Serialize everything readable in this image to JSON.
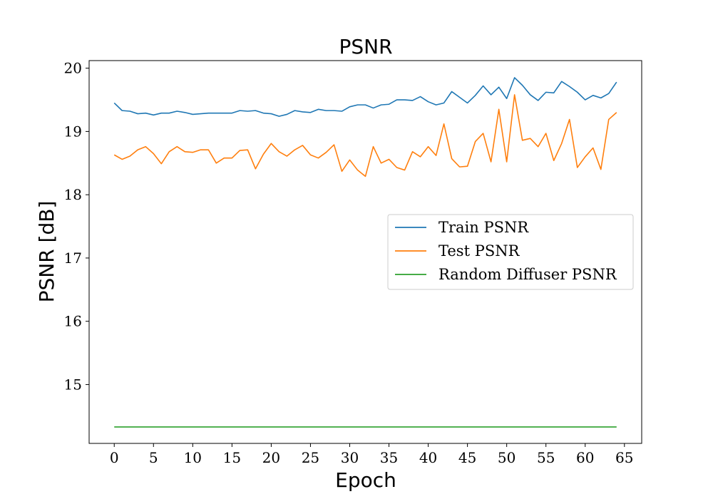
{
  "chart_data": {
    "type": "line",
    "title": "PSNR",
    "xlabel": "Epoch",
    "ylabel": "PSNR [dB]",
    "xlim": [
      -3.2,
      67.2
    ],
    "ylim": [
      14.07,
      20.12
    ],
    "xticks": [
      0,
      5,
      10,
      15,
      20,
      25,
      30,
      35,
      40,
      45,
      50,
      55,
      60,
      65
    ],
    "yticks": [
      15,
      16,
      17,
      18,
      19,
      20
    ],
    "grid": false,
    "legend_position": "center-right",
    "series": [
      {
        "name": "Train PSNR",
        "color": "#1f77b4",
        "x": [
          0,
          1,
          2,
          3,
          4,
          5,
          6,
          7,
          8,
          9,
          10,
          11,
          12,
          13,
          14,
          15,
          16,
          17,
          18,
          19,
          20,
          21,
          22,
          23,
          24,
          25,
          26,
          27,
          28,
          29,
          30,
          31,
          32,
          33,
          34,
          35,
          36,
          37,
          38,
          39,
          40,
          41,
          42,
          43,
          44,
          45,
          46,
          47,
          48,
          49,
          50,
          51,
          52,
          53,
          54,
          55,
          56,
          57,
          58,
          59,
          60,
          61,
          62,
          63,
          64
        ],
        "values": [
          19.45,
          19.33,
          19.32,
          19.28,
          19.29,
          19.26,
          19.29,
          19.29,
          19.32,
          19.3,
          19.27,
          19.28,
          19.29,
          19.29,
          19.29,
          19.29,
          19.33,
          19.32,
          19.33,
          19.29,
          19.28,
          19.24,
          19.27,
          19.33,
          19.31,
          19.3,
          19.35,
          19.33,
          19.33,
          19.32,
          19.39,
          19.42,
          19.42,
          19.37,
          19.42,
          19.43,
          19.5,
          19.5,
          19.49,
          19.55,
          19.47,
          19.42,
          19.45,
          19.63,
          19.54,
          19.45,
          19.57,
          19.72,
          19.58,
          19.7,
          19.52,
          19.85,
          19.73,
          19.58,
          19.49,
          19.62,
          19.61,
          19.79,
          19.71,
          19.62,
          19.5,
          19.57,
          19.53,
          19.6,
          19.78
        ]
      },
      {
        "name": "Test PSNR",
        "color": "#ff7f0e",
        "x": [
          0,
          1,
          2,
          3,
          4,
          5,
          6,
          7,
          8,
          9,
          10,
          11,
          12,
          13,
          14,
          15,
          16,
          17,
          18,
          19,
          20,
          21,
          22,
          23,
          24,
          25,
          26,
          27,
          28,
          29,
          30,
          31,
          32,
          33,
          34,
          35,
          36,
          37,
          38,
          39,
          40,
          41,
          42,
          43,
          44,
          45,
          46,
          47,
          48,
          49,
          50,
          51,
          52,
          53,
          54,
          55,
          56,
          57,
          58,
          59,
          60,
          61,
          62,
          63,
          64
        ],
        "values": [
          18.63,
          18.56,
          18.61,
          18.71,
          18.76,
          18.65,
          18.49,
          18.68,
          18.76,
          18.68,
          18.67,
          18.71,
          18.71,
          18.5,
          18.58,
          18.58,
          18.7,
          18.71,
          18.41,
          18.64,
          18.81,
          18.68,
          18.61,
          18.71,
          18.78,
          18.63,
          18.58,
          18.67,
          18.79,
          18.37,
          18.55,
          18.39,
          18.29,
          18.76,
          18.5,
          18.56,
          18.43,
          18.39,
          18.68,
          18.6,
          18.76,
          18.62,
          19.12,
          18.57,
          18.44,
          18.45,
          18.84,
          18.97,
          18.52,
          19.35,
          18.52,
          19.58,
          18.86,
          18.89,
          18.76,
          18.97,
          18.54,
          18.81,
          19.19,
          18.43,
          18.6,
          18.74,
          18.4,
          19.19,
          19.3
        ]
      },
      {
        "name": "Random Diffuser PSNR",
        "color": "#2ca02c",
        "x": [
          0,
          64
        ],
        "values": [
          14.33,
          14.33
        ]
      }
    ]
  }
}
